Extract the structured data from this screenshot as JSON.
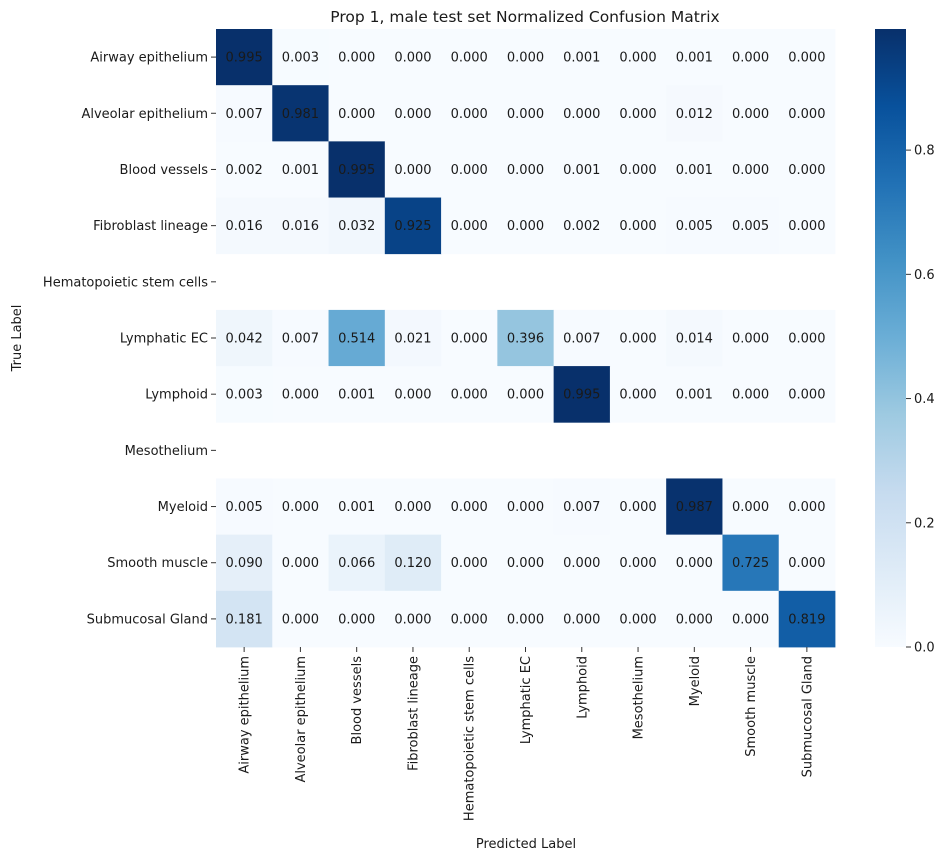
{
  "chart_data": {
    "type": "heatmap",
    "title": "Prop 1, male test set Normalized Confusion Matrix",
    "xlabel": "Predicted Label",
    "ylabel": "True Label",
    "x_categories": [
      "Airway epithelium",
      "Alveolar epithelium",
      "Blood vessels",
      "Fibroblast lineage",
      "Hematopoietic stem cells",
      "Lymphatic EC",
      "Lymphoid",
      "Mesothelium",
      "Myeloid",
      "Smooth muscle",
      "Submucosal Gland"
    ],
    "y_categories": [
      "Airway epithelium",
      "Alveolar epithelium",
      "Blood vessels",
      "Fibroblast lineage",
      "Hematopoietic stem cells",
      "Lymphatic EC",
      "Lymphoid",
      "Mesothelium",
      "Myeloid",
      "Smooth muscle",
      "Submucosal Gland"
    ],
    "values": [
      [
        0.995,
        0.003,
        0.0,
        0.0,
        0.0,
        0.0,
        0.001,
        0.0,
        0.001,
        0.0,
        0.0
      ],
      [
        0.007,
        0.981,
        0.0,
        0.0,
        0.0,
        0.0,
        0.0,
        0.0,
        0.012,
        0.0,
        0.0
      ],
      [
        0.002,
        0.001,
        0.995,
        0.0,
        0.0,
        0.0,
        0.001,
        0.0,
        0.001,
        0.0,
        0.0
      ],
      [
        0.016,
        0.016,
        0.032,
        0.925,
        0.0,
        0.0,
        0.002,
        0.0,
        0.005,
        0.005,
        0.0
      ],
      [
        null,
        null,
        null,
        null,
        null,
        null,
        null,
        null,
        null,
        null,
        null
      ],
      [
        0.042,
        0.007,
        0.514,
        0.021,
        0.0,
        0.396,
        0.007,
        0.0,
        0.014,
        0.0,
        0.0
      ],
      [
        0.003,
        0.0,
        0.001,
        0.0,
        0.0,
        0.0,
        0.995,
        0.0,
        0.001,
        0.0,
        0.0
      ],
      [
        null,
        null,
        null,
        null,
        null,
        null,
        null,
        null,
        null,
        null,
        null
      ],
      [
        0.005,
        0.0,
        0.001,
        0.0,
        0.0,
        0.0,
        0.007,
        0.0,
        0.987,
        0.0,
        0.0
      ],
      [
        0.09,
        0.0,
        0.066,
        0.12,
        0.0,
        0.0,
        0.0,
        0.0,
        0.0,
        0.725,
        0.0
      ],
      [
        0.181,
        0.0,
        0.0,
        0.0,
        0.0,
        0.0,
        0.0,
        0.0,
        0.0,
        0.0,
        0.819
      ]
    ],
    "colorbar": {
      "colormap": "Blues",
      "min": 0.0,
      "max": 0.995,
      "ticks": [
        0.0,
        0.2,
        0.4,
        0.6,
        0.8
      ],
      "tick_labels": [
        "0.0",
        "0.2",
        "0.4",
        "0.6",
        "0.8"
      ]
    },
    "grid": false,
    "legend": "none"
  }
}
